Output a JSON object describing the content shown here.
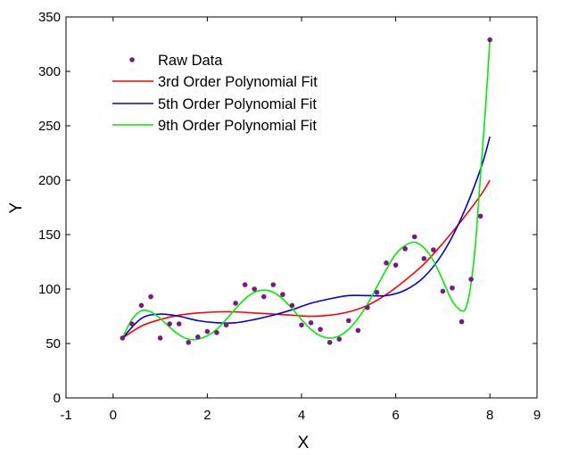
{
  "chart_data": {
    "type": "scatter",
    "title": "",
    "xlabel": "X",
    "ylabel": "Y",
    "xlim": [
      -1,
      9
    ],
    "ylim": [
      0,
      350
    ],
    "xticks": [
      "-1",
      "0",
      "2",
      "4",
      "6",
      "8",
      "9"
    ],
    "yticks": [
      "0",
      "50",
      "100",
      "150",
      "200",
      "250",
      "300",
      "350"
    ],
    "legend_position": "top-left",
    "colors": {
      "raw": "#7a1a80",
      "fit3": "#ff0000",
      "fit5": "#0000e0",
      "fit9": "#00ee00"
    },
    "raw_data": {
      "name": "Raw Data",
      "x": [
        0.2,
        0.4,
        0.6,
        0.8,
        1.0,
        1.2,
        1.4,
        1.6,
        1.8,
        2.0,
        2.2,
        2.4,
        2.6,
        2.8,
        3.0,
        3.2,
        3.4,
        3.6,
        3.8,
        4.0,
        4.2,
        4.4,
        4.6,
        4.8,
        5.0,
        5.2,
        5.4,
        5.6,
        5.8,
        6.0,
        6.2,
        6.4,
        6.6,
        6.8,
        7.0,
        7.2,
        7.4,
        7.6,
        7.8,
        8.0
      ],
      "y": [
        55,
        68,
        85,
        93,
        55,
        68,
        68,
        51,
        56,
        61,
        60,
        67,
        87,
        104,
        100,
        93,
        104,
        95,
        85,
        67,
        69,
        63,
        51,
        54,
        71,
        62,
        83,
        97,
        124,
        122,
        137,
        148,
        128,
        136,
        98,
        101,
        70,
        109,
        167,
        329
      ]
    },
    "series": [
      {
        "name": "3rd Order Polynomial Fit",
        "x": [
          0.2,
          0.6,
          1.0,
          1.4,
          1.8,
          2.2,
          2.6,
          3.0,
          3.4,
          3.8,
          4.2,
          4.6,
          5.0,
          5.4,
          5.8,
          6.2,
          6.6,
          7.0,
          7.4,
          7.8,
          8.0
        ],
        "values": [
          55,
          66,
          72,
          76,
          78,
          79,
          79,
          78,
          77,
          76,
          75,
          76,
          79,
          85,
          95,
          108,
          123,
          142,
          163,
          186,
          200
        ]
      },
      {
        "name": "5th Order Polynomial Fit",
        "x": [
          0.2,
          0.6,
          1.0,
          1.4,
          1.8,
          2.2,
          2.6,
          3.0,
          3.4,
          3.8,
          4.2,
          4.6,
          5.0,
          5.4,
          5.8,
          6.2,
          6.6,
          7.0,
          7.4,
          7.8,
          8.0
        ],
        "values": [
          55,
          73,
          77,
          75,
          71,
          69,
          69,
          72,
          76,
          81,
          87,
          91,
          94,
          94,
          94,
          99,
          111,
          133,
          166,
          210,
          240
        ]
      },
      {
        "name": "9th Order Polynomial Fit",
        "x": [
          0.2,
          0.4,
          0.6,
          0.8,
          1.0,
          1.2,
          1.4,
          1.6,
          1.8,
          2.0,
          2.2,
          2.4,
          2.6,
          2.8,
          3.0,
          3.2,
          3.4,
          3.6,
          3.8,
          4.0,
          4.2,
          4.4,
          4.6,
          4.8,
          5.0,
          5.2,
          5.4,
          5.6,
          5.8,
          6.0,
          6.2,
          6.4,
          6.6,
          6.8,
          7.0,
          7.2,
          7.4,
          7.5,
          7.6,
          7.7,
          7.8,
          7.9,
          8.0
        ],
        "values": [
          55,
          72,
          80,
          79,
          73,
          65,
          58,
          54,
          54,
          57,
          63,
          72,
          82,
          91,
          97,
          99,
          97,
          91,
          82,
          72,
          63,
          57,
          55,
          57,
          63,
          73,
          86,
          102,
          118,
          132,
          140,
          143,
          138,
          126,
          108,
          89,
          80,
          84,
          105,
          145,
          205,
          262,
          329
        ]
      }
    ]
  }
}
